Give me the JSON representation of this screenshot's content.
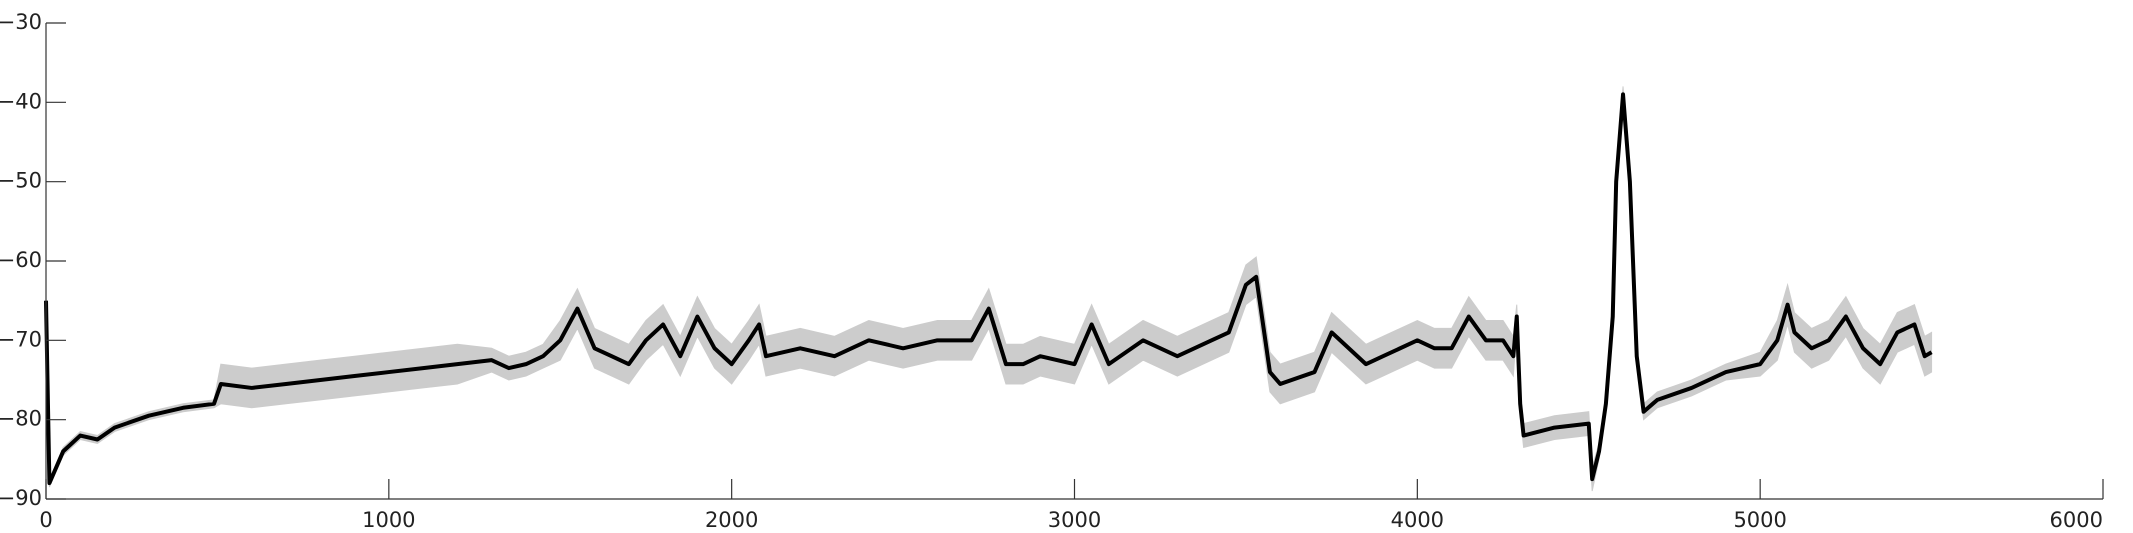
{
  "chart_data": {
    "type": "line",
    "x": [
      0,
      10,
      50,
      100,
      150,
      200,
      300,
      400,
      490,
      510,
      600,
      700,
      800,
      900,
      1000,
      1100,
      1200,
      1300,
      1350,
      1400,
      1450,
      1500,
      1550,
      1600,
      1650,
      1700,
      1750,
      1800,
      1850,
      1900,
      1950,
      2000,
      2050,
      2080,
      2100,
      2200,
      2300,
      2400,
      2500,
      2600,
      2700,
      2750,
      2800,
      2850,
      2900,
      3000,
      3050,
      3100,
      3200,
      3300,
      3400,
      3450,
      3500,
      3530,
      3550,
      3570,
      3600,
      3700,
      3750,
      3800,
      3850,
      3900,
      4000,
      4050,
      4100,
      4150,
      4200,
      4250,
      4280,
      4290,
      4300,
      4310,
      4400,
      4500,
      4510,
      4530,
      4550,
      4570,
      4580,
      4600,
      4620,
      4640,
      4660,
      4700,
      4800,
      4900,
      5000,
      5050,
      5080,
      5100,
      5150,
      5200,
      5250,
      5300,
      5350,
      5400,
      5450,
      5480,
      5500
    ],
    "series": [
      {
        "color": "#000000",
        "values": [
          -65,
          -88,
          -84,
          -82,
          -82.5,
          -81,
          -79.5,
          -78.5,
          -78,
          -75.5,
          -76,
          -75.5,
          -75,
          -74.5,
          -74,
          -73.5,
          -73,
          -72.5,
          -73.5,
          -73,
          -72,
          -70,
          -66,
          -71,
          -72,
          -73,
          -70,
          -68,
          -72,
          -67,
          -71,
          -73,
          -70,
          -68,
          -72,
          -71,
          -72,
          -70,
          -71,
          -70,
          -70,
          -66,
          -73,
          -73,
          -72,
          -73,
          -68,
          -73,
          -70,
          -72,
          -70,
          -69,
          -63,
          -62,
          -68,
          -74,
          -75.5,
          -74,
          -69,
          -71,
          -73,
          -72,
          -70,
          -71,
          -71,
          -67,
          -70,
          -70,
          -72,
          -67,
          -78,
          -82,
          -81,
          -80.5,
          -87.5,
          -84,
          -78,
          -67,
          -50,
          -39,
          -50,
          -72,
          -79,
          -77.5,
          -76,
          -74,
          -73,
          -70,
          -65.5,
          -69,
          -71,
          -70,
          -67,
          -71,
          -73,
          -69,
          -68,
          -72,
          -71.5
        ]
      }
    ],
    "band": {
      "color": "#cccccc",
      "upper": [
        -64.5,
        -87.5,
        -83.5,
        -81.5,
        -82,
        -80.5,
        -79,
        -78,
        -77.5,
        -73,
        -73.5,
        -73,
        -72.5,
        -72,
        -71.5,
        -71,
        -70.5,
        -71,
        -72,
        -71.5,
        -70.5,
        -67.5,
        -63.5,
        -68.5,
        -69.5,
        -70.5,
        -67.5,
        -65.5,
        -69.5,
        -64.5,
        -68.5,
        -70.5,
        -67.5,
        -65.5,
        -69.5,
        -68.5,
        -69.5,
        -67.5,
        -68.5,
        -67.5,
        -67.5,
        -63.5,
        -70.5,
        -70.5,
        -69.5,
        -70.5,
        -65.5,
        -70.5,
        -67.5,
        -69.5,
        -67.5,
        -66.5,
        -60.5,
        -59.5,
        -65.5,
        -71.5,
        -73,
        -71.5,
        -66.5,
        -68.5,
        -70.5,
        -69.5,
        -67.5,
        -68.5,
        -68.5,
        -64.5,
        -67.5,
        -67.5,
        -69.5,
        -65.5,
        -76.5,
        -80.5,
        -79.5,
        -79,
        -86,
        -83,
        -77,
        -66,
        -49,
        -38,
        -49,
        -71,
        -78,
        -76.5,
        -75,
        -73,
        -71.5,
        -67.5,
        -63,
        -66.5,
        -68.5,
        -67.5,
        -64.5,
        -68.5,
        -70.5,
        -66.5,
        -65.5,
        -69.5,
        -69
      ],
      "lower": [
        -65.5,
        -88.5,
        -84.5,
        -82.5,
        -83,
        -81.5,
        -80,
        -79,
        -78.5,
        -78,
        -78.5,
        -78,
        -77.5,
        -77,
        -76.5,
        -76,
        -75.5,
        -74,
        -75,
        -74.5,
        -73.5,
        -72.5,
        -68.5,
        -73.5,
        -74.5,
        -75.5,
        -72.5,
        -70.5,
        -74.5,
        -69.5,
        -73.5,
        -75.5,
        -72.5,
        -70.5,
        -74.5,
        -73.5,
        -74.5,
        -72.5,
        -73.5,
        -72.5,
        -72.5,
        -68.5,
        -75.5,
        -75.5,
        -74.5,
        -75.5,
        -70.5,
        -75.5,
        -72.5,
        -74.5,
        -72.5,
        -71.5,
        -65.5,
        -64.5,
        -70.5,
        -76.5,
        -78,
        -76.5,
        -71.5,
        -73.5,
        -75.5,
        -74.5,
        -72.5,
        -73.5,
        -73.5,
        -69.5,
        -72.5,
        -72.5,
        -74.5,
        -68.5,
        -79.5,
        -83.5,
        -82.5,
        -82,
        -89,
        -85,
        -79,
        -68,
        -51,
        -40,
        -51,
        -73,
        -80,
        -78.5,
        -77,
        -75,
        -74.5,
        -72.5,
        -68,
        -71.5,
        -73.5,
        -72.5,
        -69.5,
        -73.5,
        -75.5,
        -71.5,
        -70.5,
        -74.5,
        -74
      ]
    },
    "xlim": [
      0,
      6000
    ],
    "xticks": [
      0,
      1000,
      2000,
      3000,
      4000,
      5000,
      6000
    ],
    "ylim": [
      -90,
      -30
    ],
    "yticks": [
      {
        "value": -30,
        "label": "−30"
      },
      {
        "value": -40,
        "label": "−40"
      },
      {
        "value": -50,
        "label": "−50"
      },
      {
        "value": -60,
        "label": "−60"
      },
      {
        "value": -70,
        "label": "−70"
      },
      {
        "value": -80,
        "label": "−80"
      },
      {
        "value": -90,
        "label": "−90"
      }
    ],
    "grid": false
  }
}
